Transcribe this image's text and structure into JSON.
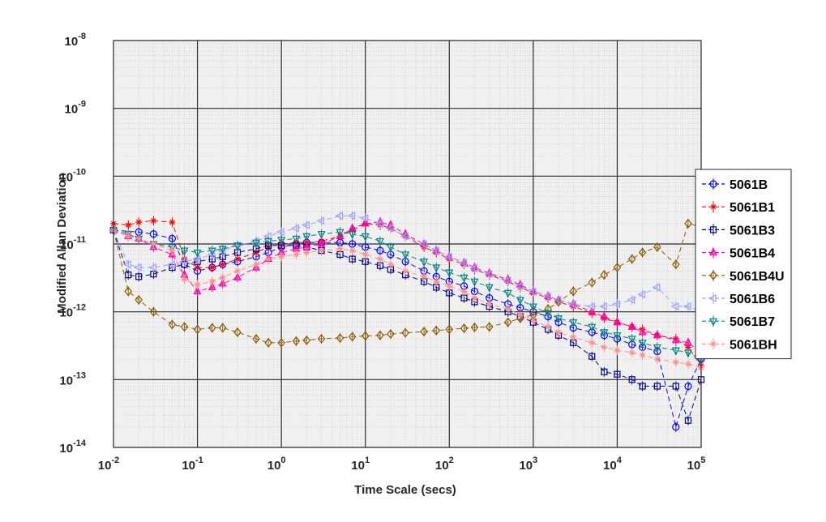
{
  "chart_data": {
    "type": "line",
    "xlabel": "Time Scale (secs)",
    "ylabel": "Modified Allan Deviation",
    "xscale": "log",
    "yscale": "log",
    "xlim": [
      0.01,
      100000
    ],
    "ylim": [
      1e-14,
      1e-08
    ],
    "x_ticks": [
      {
        "base": "10",
        "exp": "-2",
        "value": 0.01
      },
      {
        "base": "10",
        "exp": "-1",
        "value": 0.1
      },
      {
        "base": "10",
        "exp": "0",
        "value": 1
      },
      {
        "base": "10",
        "exp": "1",
        "value": 10
      },
      {
        "base": "10",
        "exp": "2",
        "value": 100
      },
      {
        "base": "10",
        "exp": "3",
        "value": 1000
      },
      {
        "base": "10",
        "exp": "4",
        "value": 10000
      },
      {
        "base": "10",
        "exp": "5",
        "value": 100000
      }
    ],
    "y_ticks": [
      {
        "base": "10",
        "exp": "-14",
        "value": 1e-14
      },
      {
        "base": "10",
        "exp": "-13",
        "value": 1e-13
      },
      {
        "base": "10",
        "exp": "-12",
        "value": 1e-12
      },
      {
        "base": "10",
        "exp": "-11",
        "value": 1e-11
      },
      {
        "base": "10",
        "exp": "-10",
        "value": 1e-10
      },
      {
        "base": "10",
        "exp": "-9",
        "value": 1e-09
      },
      {
        "base": "10",
        "exp": "-8",
        "value": 1e-08
      }
    ],
    "grid": true,
    "minor_grid": true,
    "legend_position": "right",
    "series": [
      {
        "name": "5061B",
        "color": "#0000ff",
        "marker": "circle",
        "x": [
          0.01,
          0.02,
          0.03,
          0.05,
          0.07,
          0.1,
          0.15,
          0.2,
          0.3,
          0.5,
          0.7,
          1,
          1.5,
          2,
          3,
          5,
          7,
          10,
          15,
          20,
          30,
          50,
          70,
          100,
          150,
          200,
          300,
          500,
          700,
          1000,
          1500,
          2000,
          3000,
          5000,
          7000,
          10000,
          15000,
          20000,
          30000,
          50000,
          70000,
          100000
        ],
        "y": [
          1.6e-11,
          1.5e-11,
          1.4e-11,
          1.2e-11,
          5e-12,
          4e-12,
          4.5e-12,
          5e-12,
          5.5e-12,
          6.5e-12,
          7.5e-12,
          9e-12,
          1e-11,
          1.05e-11,
          1.05e-11,
          1.05e-11,
          1e-11,
          9e-12,
          8e-12,
          7e-12,
          5.5e-12,
          4e-12,
          3.3e-12,
          2.8e-12,
          2.4e-12,
          2e-12,
          1.6e-12,
          1.3e-12,
          1.15e-12,
          1e-12,
          8.5e-13,
          7e-13,
          5.8e-13,
          5e-13,
          4.5e-13,
          4e-13,
          3.3e-13,
          3e-13,
          2.6e-13,
          2e-14,
          8e-14,
          2e-13
        ]
      },
      {
        "name": "5061B1",
        "color": "#ff0000",
        "marker": "star",
        "x": [
          0.01,
          0.015,
          0.02,
          0.03,
          0.05,
          0.07,
          0.1,
          0.15,
          0.2,
          0.3,
          0.5,
          0.7,
          1,
          1.5,
          2,
          3,
          5,
          7,
          10,
          15,
          20,
          30,
          50,
          70,
          100,
          150,
          200,
          300,
          500,
          700,
          1000,
          1500,
          2000,
          3000,
          5000,
          7000,
          10000,
          15000,
          20000,
          30000,
          50000,
          70000,
          100000
        ],
        "y": [
          2e-11,
          1.9e-11,
          2.1e-11,
          2.2e-11,
          2.1e-11,
          6e-12,
          4.5e-12,
          4.5e-12,
          5e-12,
          6e-12,
          7.5e-12,
          9e-12,
          1e-11,
          1.05e-11,
          1.05e-11,
          1.1e-11,
          1.3e-11,
          1.6e-11,
          2e-11,
          1.9e-11,
          1.7e-11,
          1.3e-11,
          9e-12,
          7.5e-12,
          6e-12,
          5e-12,
          4.2e-12,
          3.5e-12,
          2.8e-12,
          2.3e-12,
          1.9e-12,
          1.6e-12,
          1.4e-12,
          1.2e-12,
          9.5e-13,
          8e-13,
          7e-13,
          6e-13,
          5.5e-13,
          4.5e-13,
          4e-13,
          3e-13,
          1.6e-13
        ]
      },
      {
        "name": "5061B3",
        "color": "#000080",
        "marker": "square",
        "x": [
          0.01,
          0.015,
          0.02,
          0.03,
          0.05,
          0.07,
          0.1,
          0.15,
          0.2,
          0.3,
          0.5,
          0.7,
          1,
          1.5,
          2,
          3,
          5,
          7,
          10,
          15,
          20,
          30,
          50,
          70,
          100,
          150,
          200,
          300,
          500,
          700,
          1000,
          1500,
          2000,
          3000,
          5000,
          7000,
          10000,
          15000,
          20000,
          30000,
          50000,
          70000,
          100000
        ],
        "y": [
          1.6e-11,
          3.5e-12,
          3.3e-12,
          3.6e-12,
          4.5e-12,
          5e-12,
          5.5e-12,
          6e-12,
          6.5e-12,
          7.5e-12,
          8.5e-12,
          9.5e-12,
          9.5e-12,
          9.5e-12,
          9e-12,
          8e-12,
          7e-12,
          6e-12,
          5.5e-12,
          4.8e-12,
          4.2e-12,
          3.5e-12,
          2.8e-12,
          2.3e-12,
          1.9e-12,
          1.6e-12,
          1.4e-12,
          1.2e-12,
          1e-12,
          8.5e-13,
          7e-13,
          5.5e-13,
          4.5e-13,
          3.5e-13,
          2.2e-13,
          1.3e-13,
          1.2e-13,
          1e-13,
          8e-14,
          8e-14,
          8e-14,
          2.5e-14,
          1e-13
        ]
      },
      {
        "name": "5061B4",
        "color": "#ff00aa",
        "marker": "triangle-up",
        "x": [
          0.01,
          0.015,
          0.02,
          0.03,
          0.05,
          0.07,
          0.1,
          0.15,
          0.2,
          0.3,
          0.5,
          0.7,
          1,
          1.5,
          2,
          3,
          5,
          7,
          10,
          15,
          20,
          30,
          50,
          70,
          100,
          150,
          200,
          300,
          500,
          700,
          1000,
          1500,
          2000,
          3000,
          5000,
          7000,
          10000,
          15000,
          20000,
          30000,
          50000,
          70000,
          100000
        ],
        "y": [
          1.6e-11,
          1.3e-11,
          1.2e-11,
          9e-12,
          7e-12,
          3.5e-12,
          2e-12,
          2.3e-12,
          2.6e-12,
          3.2e-12,
          4.5e-12,
          6e-12,
          7.5e-12,
          8.5e-12,
          9e-12,
          1e-11,
          1.3e-11,
          1.7e-11,
          2e-11,
          2.1e-11,
          1.9e-11,
          1.4e-11,
          1e-11,
          8e-12,
          6.5e-12,
          5.3e-12,
          4.5e-12,
          3.7e-12,
          3e-12,
          2.5e-12,
          2e-12,
          1.7e-12,
          1.5e-12,
          1.3e-12,
          1e-12,
          8.5e-13,
          7e-13,
          6e-13,
          5e-13,
          4.5e-13,
          3.8e-13,
          3.5e-13,
          2.5e-13
        ]
      },
      {
        "name": "5061B4U",
        "color": "#8b5a00",
        "marker": "diamond",
        "x": [
          0.01,
          0.015,
          0.02,
          0.03,
          0.05,
          0.07,
          0.1,
          0.15,
          0.2,
          0.3,
          0.5,
          0.7,
          1,
          1.5,
          2,
          3,
          5,
          7,
          10,
          15,
          20,
          30,
          50,
          70,
          100,
          150,
          200,
          300,
          500,
          700,
          1000,
          1500,
          2000,
          3000,
          5000,
          7000,
          10000,
          15000,
          20000,
          30000,
          50000,
          70000,
          100000
        ],
        "y": [
          1.6e-11,
          2e-12,
          1.5e-12,
          1e-12,
          6.5e-13,
          6e-13,
          5.5e-13,
          5.8e-13,
          5.8e-13,
          5e-13,
          4e-13,
          3.5e-13,
          3.5e-13,
          3.7e-13,
          3.8e-13,
          4e-13,
          4.1e-13,
          4.3e-13,
          4.4e-13,
          4.5e-13,
          4.7e-13,
          4.9e-13,
          5.1e-13,
          5.3e-13,
          5.5e-13,
          5.7e-13,
          5.9e-13,
          6e-13,
          7e-13,
          8e-13,
          9e-13,
          1.1e-12,
          1.4e-12,
          2e-12,
          2.7e-12,
          3.5e-12,
          4.5e-12,
          6e-12,
          7.5e-12,
          9e-12,
          5e-12,
          2e-11,
          1.8e-11
        ]
      },
      {
        "name": "5061B6",
        "color": "#a0a0ff",
        "marker": "triangle-left",
        "x": [
          0.01,
          0.015,
          0.02,
          0.03,
          0.05,
          0.07,
          0.1,
          0.15,
          0.2,
          0.3,
          0.5,
          0.7,
          1,
          1.5,
          2,
          3,
          5,
          7,
          10,
          15,
          20,
          30,
          50,
          70,
          100,
          150,
          200,
          300,
          500,
          700,
          1000,
          1500,
          2000,
          3000,
          5000,
          7000,
          10000,
          15000,
          20000,
          30000,
          50000,
          70000,
          100000
        ],
        "y": [
          1.6e-11,
          5e-12,
          4.5e-12,
          4.5e-12,
          5e-12,
          5.5e-12,
          6e-12,
          7e-12,
          8e-12,
          9.5e-12,
          1.1e-11,
          1.3e-11,
          1.5e-11,
          1.7e-11,
          1.9e-11,
          2.2e-11,
          2.6e-11,
          2.6e-11,
          2.4e-11,
          2e-11,
          1.7e-11,
          1.3e-11,
          1e-11,
          8e-12,
          6.5e-12,
          5.3e-12,
          4.4e-12,
          3.6e-12,
          2.9e-12,
          2.4e-12,
          2e-12,
          1.7e-12,
          1.5e-12,
          1.3e-12,
          1.2e-12,
          1.2e-12,
          1.3e-12,
          1.5e-12,
          1.8e-12,
          2.3e-12,
          1.2e-12,
          1.2e-12,
          1e-12
        ]
      },
      {
        "name": "5061B7",
        "color": "#008080",
        "marker": "triangle-down",
        "x": [
          0.01,
          0.015,
          0.02,
          0.03,
          0.05,
          0.07,
          0.1,
          0.15,
          0.2,
          0.3,
          0.5,
          0.7,
          1,
          1.5,
          2,
          3,
          5,
          7,
          10,
          15,
          20,
          30,
          50,
          70,
          100,
          150,
          200,
          300,
          500,
          700,
          1000,
          1500,
          2000,
          3000,
          5000,
          7000,
          10000,
          15000,
          20000,
          30000,
          50000,
          70000,
          100000
        ],
        "y": [
          1.6e-11,
          1.4e-11,
          1.2e-11,
          1e-11,
          9e-12,
          8e-12,
          7.5e-12,
          8e-12,
          8.5e-12,
          9.5e-12,
          1.05e-11,
          1.1e-11,
          1.15e-11,
          1.2e-11,
          1.3e-11,
          1.4e-11,
          1.5e-11,
          1.4e-11,
          1.3e-11,
          1.1e-11,
          9e-12,
          7e-12,
          5.5e-12,
          4.5e-12,
          3.8e-12,
          3.2e-12,
          2.8e-12,
          2.3e-12,
          1.9e-12,
          1.5e-12,
          1.2e-12,
          9.5e-13,
          8e-13,
          7e-13,
          6e-13,
          5e-13,
          4.5e-13,
          4e-13,
          3.5e-13,
          3e-13,
          2.7e-13,
          2.5e-13,
          2e-13
        ]
      },
      {
        "name": "5061BH",
        "color": "#ff9090",
        "marker": "star",
        "x": [
          0.01,
          0.015,
          0.02,
          0.03,
          0.05,
          0.07,
          0.1,
          0.15,
          0.2,
          0.3,
          0.5,
          0.7,
          1,
          1.5,
          2,
          3,
          5,
          7,
          10,
          15,
          20,
          30,
          50,
          70,
          100,
          150,
          200,
          300,
          500,
          700,
          1000,
          1500,
          2000,
          3000,
          5000,
          7000,
          10000,
          15000,
          20000,
          30000,
          50000,
          70000,
          100000
        ],
        "y": [
          1.6e-11,
          1.3e-11,
          1.2e-11,
          1e-11,
          8e-12,
          3e-12,
          2.5e-12,
          2.8e-12,
          3.2e-12,
          4e-12,
          5e-12,
          6e-12,
          6.5e-12,
          7e-12,
          7.5e-12,
          8e-12,
          8.5e-12,
          8e-12,
          7e-12,
          6e-12,
          5e-12,
          4e-12,
          3.3e-12,
          2.8e-12,
          2.4e-12,
          2e-12,
          1.6e-12,
          1.3e-12,
          1.1e-12,
          9e-13,
          7.5e-13,
          6e-13,
          5e-13,
          4.2e-13,
          3.5e-13,
          3e-13,
          2.7e-13,
          2.5e-13,
          2.3e-13,
          2e-13,
          1.8e-13,
          1.7e-13,
          1.5e-13
        ]
      }
    ]
  }
}
